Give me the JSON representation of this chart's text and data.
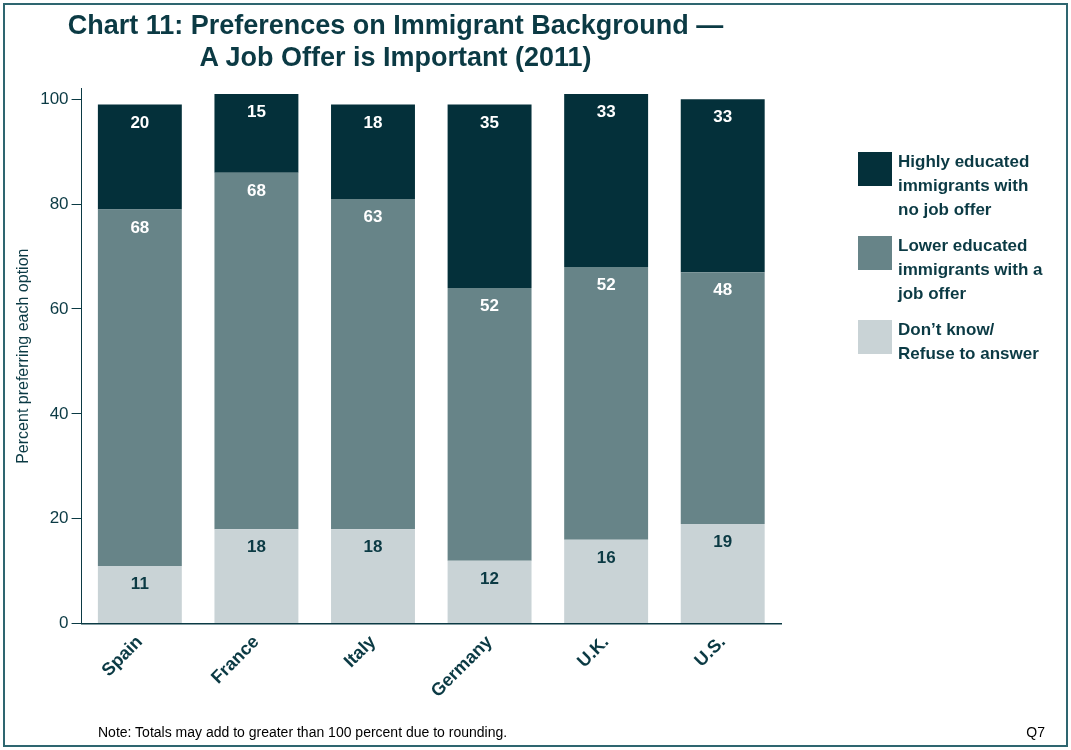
{
  "chart_data": {
    "type": "bar",
    "title": "Chart 11: Preferences on Immigrant Background —\nA Job Offer is Important (2011)",
    "ylabel": "Percent preferring each option",
    "categories": [
      "Spain",
      "France",
      "Italy",
      "Germany",
      "U.K.",
      "U.S."
    ],
    "stacked": true,
    "series": [
      {
        "name": "Don’t know/ Refuse to answer",
        "color": "#c9d3d6",
        "values": [
          11,
          18,
          18,
          12,
          16,
          19
        ]
      },
      {
        "name": "Lower educated immigrants with a job offer",
        "color": "#678488",
        "values": [
          68,
          68,
          63,
          52,
          52,
          48
        ]
      },
      {
        "name": "Highly educated immigrants with no job offer",
        "color": "#04303a",
        "values": [
          20,
          15,
          18,
          35,
          33,
          33
        ]
      }
    ],
    "ylim": [
      0,
      102
    ],
    "yticks": [
      0,
      20,
      40,
      60,
      80,
      100
    ],
    "grid": false,
    "legend": "right",
    "data_labels": true,
    "annotations": [
      "Note: Totals may add to greater than 100 percent due to rounding.",
      "Q7"
    ]
  }
}
